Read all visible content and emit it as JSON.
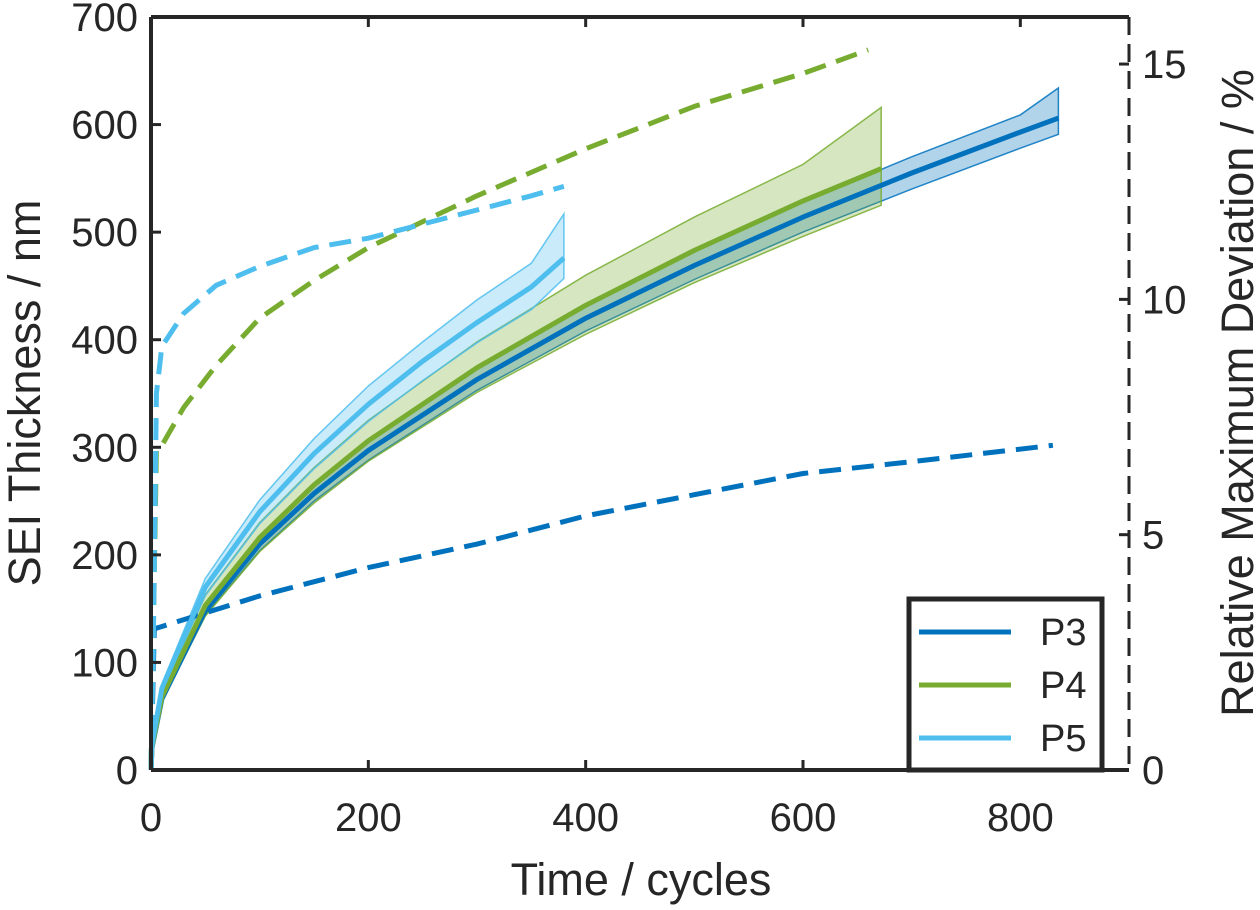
{
  "chart_data": {
    "type": "line",
    "title": "",
    "xlabel": "Time  /  cycles",
    "ylabel": "SEI Thickness  /  nm",
    "y2label": "Relative Maximum Deviation  /  %",
    "xlim": [
      0,
      900
    ],
    "ylim": [
      0,
      700
    ],
    "y2lim": [
      0,
      16
    ],
    "xticks": [
      0,
      200,
      400,
      600,
      800
    ],
    "xtick_labels": [
      "0",
      "200",
      "400",
      "600",
      "800"
    ],
    "yticks": [
      0,
      100,
      200,
      300,
      400,
      500,
      600,
      700
    ],
    "ytick_labels": [
      "0",
      "100",
      "200",
      "300",
      "400",
      "500",
      "600",
      "700"
    ],
    "y2ticks": [
      0,
      5,
      10,
      15
    ],
    "y2tick_labels": [
      "0",
      "5",
      "10",
      "15"
    ],
    "grid": false,
    "legend_position": "bottom-right",
    "colors": {
      "P3": "#0072bd",
      "P4": "#77ac30",
      "P5": "#4dbeee"
    },
    "series": [
      {
        "name": "P3",
        "axis": "left",
        "style": "solid",
        "x": [
          0,
          1,
          10,
          50,
          100,
          150,
          200,
          300,
          400,
          500,
          600,
          700,
          800,
          835
        ],
        "y": [
          0,
          21,
          66,
          148,
          210,
          257,
          297,
          363,
          420,
          469,
          514,
          555,
          593,
          606
        ],
        "lower": [
          0,
          20,
          64,
          144,
          204,
          250,
          288,
          353,
          408,
          456,
          500,
          540,
          578,
          591
        ],
        "upper": [
          0,
          22,
          68,
          152,
          215,
          264,
          305,
          373,
          431,
          482,
          528,
          570,
          609,
          634
        ]
      },
      {
        "name": "P3",
        "axis": "right",
        "style": "dashed",
        "x": [
          0,
          3,
          10,
          100,
          200,
          300,
          400,
          500,
          600,
          700,
          830
        ],
        "y": [
          0,
          3.0,
          3.05,
          3.7,
          4.3,
          4.8,
          5.4,
          5.85,
          6.3,
          6.55,
          6.9
        ]
      },
      {
        "name": "P4",
        "axis": "left",
        "style": "solid",
        "x": [
          0,
          1,
          10,
          50,
          100,
          150,
          200,
          300,
          400,
          500,
          600,
          672
        ],
        "y": [
          0,
          22,
          68,
          153,
          216,
          265,
          306,
          374,
          432,
          483,
          529,
          559
        ],
        "lower": [
          0,
          20,
          64,
          143,
          203,
          248,
          287,
          351,
          405,
          453,
          496,
          525
        ],
        "upper": [
          0,
          24,
          72,
          163,
          230,
          281,
          325,
          398,
          460,
          514,
          563,
          616
        ]
      },
      {
        "name": "P4",
        "axis": "right",
        "style": "dashed",
        "x": [
          0,
          5,
          10,
          30,
          60,
          100,
          150,
          200,
          300,
          400,
          500,
          600,
          660
        ],
        "y": [
          0,
          6.8,
          6.9,
          7.7,
          8.6,
          9.6,
          10.4,
          11.1,
          12.2,
          13.2,
          14.1,
          14.8,
          15.3
        ]
      },
      {
        "name": "P5",
        "axis": "left",
        "style": "solid",
        "x": [
          0,
          1,
          10,
          50,
          100,
          150,
          200,
          250,
          300,
          350,
          380
        ],
        "y": [
          0,
          24,
          76,
          170,
          240,
          294,
          340,
          380,
          416,
          449,
          476
        ],
        "lower": [
          0,
          23,
          73,
          162,
          229,
          280,
          324,
          362,
          397,
          428,
          457
        ],
        "upper": [
          0,
          26,
          80,
          178,
          251,
          308,
          357,
          398,
          437,
          471,
          517
        ]
      },
      {
        "name": "P5",
        "axis": "right",
        "style": "dashed",
        "x": [
          0,
          2,
          5,
          10,
          30,
          60,
          100,
          150,
          200,
          250,
          300,
          350,
          380
        ],
        "y": [
          0,
          2.5,
          8.0,
          9.0,
          9.7,
          10.3,
          10.7,
          11.1,
          11.3,
          11.6,
          11.9,
          12.2,
          12.4
        ]
      }
    ],
    "legend": [
      "P3",
      "P4",
      "P5"
    ]
  }
}
